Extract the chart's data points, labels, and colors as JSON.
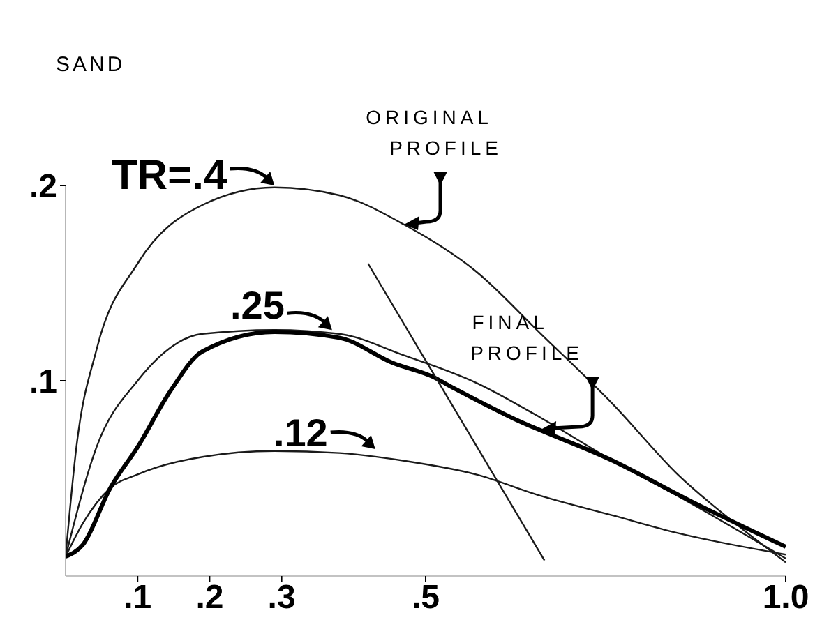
{
  "chart_data": {
    "type": "line",
    "title": "SAND",
    "xlim": [
      0,
      1.0
    ],
    "ylim": [
      0,
      0.2
    ],
    "xticks": [
      {
        "value": 0.1,
        "label": ".1"
      },
      {
        "value": 0.2,
        "label": ".2"
      },
      {
        "value": 0.3,
        "label": ".3"
      },
      {
        "value": 0.5,
        "label": ".5"
      },
      {
        "value": 1.0,
        "label": "1.0"
      }
    ],
    "yticks": [
      {
        "value": 0.1,
        "label": ".1"
      },
      {
        "value": 0.2,
        "label": ".2"
      }
    ],
    "grid": false,
    "marker": "none",
    "line_style": "solid",
    "series": [
      {
        "color": "#1a1a1a",
        "x": [
          0,
          0.015,
          0.043,
          0.1,
          0.19,
          0.29,
          0.38,
          0.47,
          0.57,
          0.66,
          0.76,
          0.85,
          0.94,
          1.0
        ],
        "values": [
          0.01,
          0.066,
          0.116,
          0.16,
          0.19,
          0.199,
          0.195,
          0.18,
          0.156,
          0.124,
          0.088,
          0.052,
          0.024,
          0.007
        ]
      },
      {
        "color": "#1a1a1a",
        "x": [
          0,
          0.043,
          0.1,
          0.19,
          0.29,
          0.38,
          0.47,
          0.57,
          0.66,
          0.76,
          0.85,
          1.0
        ],
        "values": [
          0.01,
          0.066,
          0.1,
          0.124,
          0.126,
          0.124,
          0.113,
          0.099,
          0.081,
          0.059,
          0.041,
          0.009
        ]
      },
      {
        "color": "#1a1a1a",
        "x": [
          0,
          0.024,
          0.062,
          0.1,
          0.19,
          0.29,
          0.38,
          0.47,
          0.57,
          0.66,
          0.76,
          0.85,
          1.0
        ],
        "values": [
          0.01,
          0.027,
          0.045,
          0.052,
          0.061,
          0.064,
          0.063,
          0.059,
          0.052,
          0.041,
          0.031,
          0.022,
          0.011
        ]
      },
      {
        "color": "#000000",
        "x": [
          0,
          0.024,
          0.062,
          0.1,
          0.146,
          0.19,
          0.29,
          0.38,
          0.455,
          0.51,
          0.54,
          0.62,
          0.76,
          0.87,
          1.0
        ],
        "values": [
          0.01,
          0.016,
          0.045,
          0.066,
          0.095,
          0.115,
          0.125,
          0.122,
          0.109,
          0.102,
          0.096,
          0.081,
          0.059,
          0.038,
          0.015
        ]
      },
      {
        "color": "#1a1a1a",
        "x": [
          0.42,
          0.665
        ],
        "values": [
          0.16,
          0.008
        ]
      }
    ],
    "annotations": [
      {
        "text": "TR=.4",
        "x": 0.29,
        "y": 0.2
      },
      {
        "text": ".25",
        "x": 0.37,
        "y": 0.126
      },
      {
        "text": ".12",
        "x": 0.43,
        "y": 0.065
      },
      {
        "text": "ORIGINAL PROFILE",
        "x": 0.47,
        "y": 0.18
      },
      {
        "text": "FINAL PROFILE",
        "x": 0.66,
        "y": 0.075
      }
    ]
  }
}
